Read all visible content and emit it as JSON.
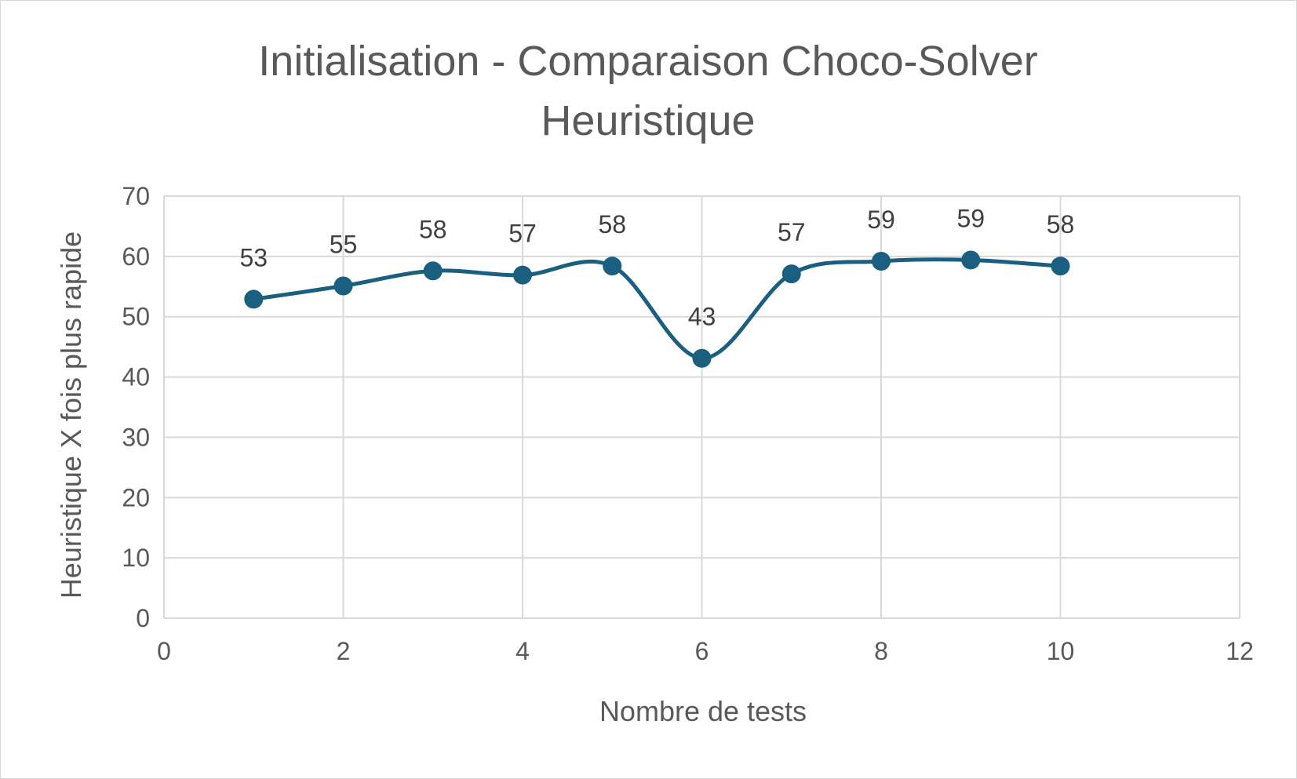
{
  "chart_data": {
    "type": "scatter",
    "title_lines": [
      "Initialisation - Comparaison Choco-Solver",
      "Heuristique"
    ],
    "xlabel": "Nombre de tests",
    "ylabel": "Heuristique X fois plus rapide",
    "xlim": [
      0,
      12
    ],
    "ylim": [
      0,
      70
    ],
    "x_ticks": [
      0,
      2,
      4,
      6,
      8,
      10,
      12
    ],
    "y_ticks": [
      0,
      10,
      20,
      30,
      40,
      50,
      60,
      70
    ],
    "grid": true,
    "legend": "none",
    "smooth_line": true,
    "series": [
      {
        "color": "#1a5e80",
        "x": [
          1,
          2,
          3,
          4,
          5,
          6,
          7,
          8,
          9,
          10
        ],
        "y": [
          52.9,
          55.1,
          57.6,
          56.9,
          58.4,
          43.1,
          57.1,
          59.2,
          59.4,
          58.4
        ],
        "data_labels": [
          "53",
          "55",
          "58",
          "57",
          "58",
          "43",
          "57",
          "59",
          "59",
          "58"
        ]
      }
    ]
  },
  "colors": {
    "grid": "#d9d9d9",
    "text": "#595959",
    "series": "#1a5e80"
  }
}
